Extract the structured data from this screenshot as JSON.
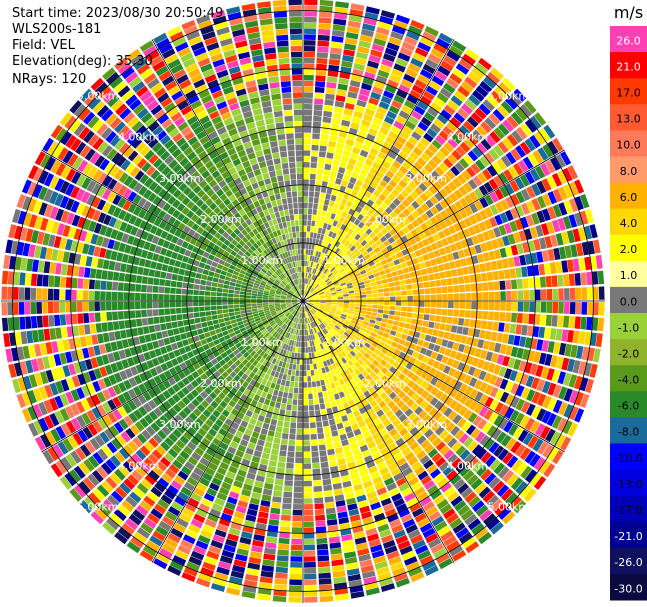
{
  "header": {
    "start_time": "Start time: 2023/08/30 20:50:49",
    "instrument": "WLS200s-181",
    "field": "Field: VEL",
    "elevation": "Elevation(deg): 35.30",
    "nrays": "NRays: 120"
  },
  "chart_data": {
    "type": "heatmap",
    "projection": "polar",
    "nrays": 120,
    "max_range_km": 5.2,
    "range_rings_km": [
      1.0,
      2.0,
      3.0,
      4.0,
      5.0
    ],
    "ring_labels": [
      "1.00km",
      "2.00km",
      "3.00km",
      "4.00km",
      "5.00km"
    ],
    "colorbar": {
      "unit": "m/s",
      "ticks": [
        "26.0",
        "21.0",
        "17.0",
        "13.0",
        "10.0",
        "8.0",
        "6.0",
        "4.0",
        "2.0",
        "1.0",
        "0.0",
        "-1.0",
        "-2.0",
        "-4.0",
        "-6.0",
        "-8.0",
        "-10.0",
        "-13.0",
        "-17.0",
        "-21.0",
        "-26.0",
        "-30.0"
      ],
      "colors": [
        "#ff3fb4",
        "#ff0000",
        "#ff3a00",
        "#ff5a32",
        "#ff7a5a",
        "#ff9a6a",
        "#ffb000",
        "#ffd800",
        "#ffff00",
        "#ffffa0",
        "#787878",
        "#9ad03a",
        "#8fb32a",
        "#5a9a1a",
        "#2a8a2a",
        "#1a6a9a",
        "#0000ff",
        "#0000e0",
        "#0000b8",
        "#000090",
        "#101060",
        "#0a0a40"
      ]
    },
    "near_field_pattern": "negative velocities (green) on west half, positive (yellow/orange) on east half, gray near-zero patches; noisy multicolour beyond ~3.5 km"
  }
}
